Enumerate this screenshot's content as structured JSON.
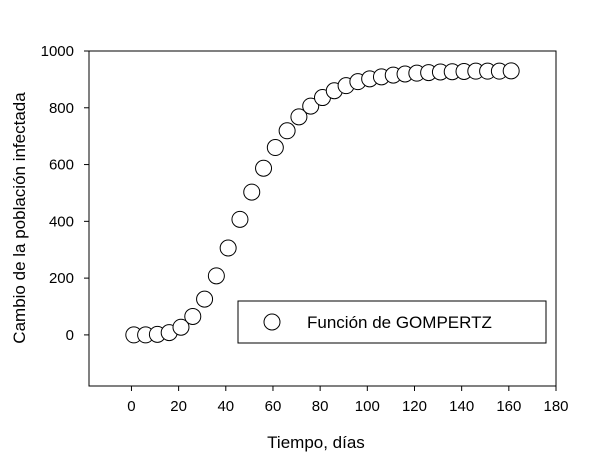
{
  "chart_data": {
    "type": "scatter",
    "title": "",
    "xlabel": "Tiempo, días",
    "ylabel": "Cambio de la población infectada",
    "xlim": [
      -18,
      180
    ],
    "ylim": [
      -180,
      1000
    ],
    "xticks": [
      0,
      20,
      40,
      60,
      80,
      100,
      120,
      140,
      160,
      180
    ],
    "yticks": [
      0,
      200,
      400,
      600,
      800,
      1000
    ],
    "grid": false,
    "legend": {
      "position": "bottom-right",
      "entries": [
        "Función de GOMPERTZ"
      ]
    },
    "marker": "open-circle",
    "colors": {
      "marker_stroke": "#000000",
      "marker_fill": "#ffffff"
    },
    "series": [
      {
        "name": "Función de GOMPERTZ",
        "x": [
          1,
          6,
          11,
          16,
          21,
          26,
          31,
          36,
          41,
          46,
          51,
          56,
          61,
          66,
          71,
          76,
          81,
          86,
          91,
          96,
          101,
          106,
          111,
          116,
          121,
          126,
          131,
          136,
          141,
          146,
          151,
          156,
          161
        ],
        "y": [
          0,
          0,
          2,
          8,
          27,
          65,
          126,
          208,
          306,
          407,
          503,
          587,
          660,
          719,
          768,
          806,
          836,
          860,
          878,
          892,
          902,
          909,
          915,
          919,
          922,
          924,
          926,
          927,
          928,
          929,
          929,
          929,
          930
        ]
      }
    ]
  }
}
